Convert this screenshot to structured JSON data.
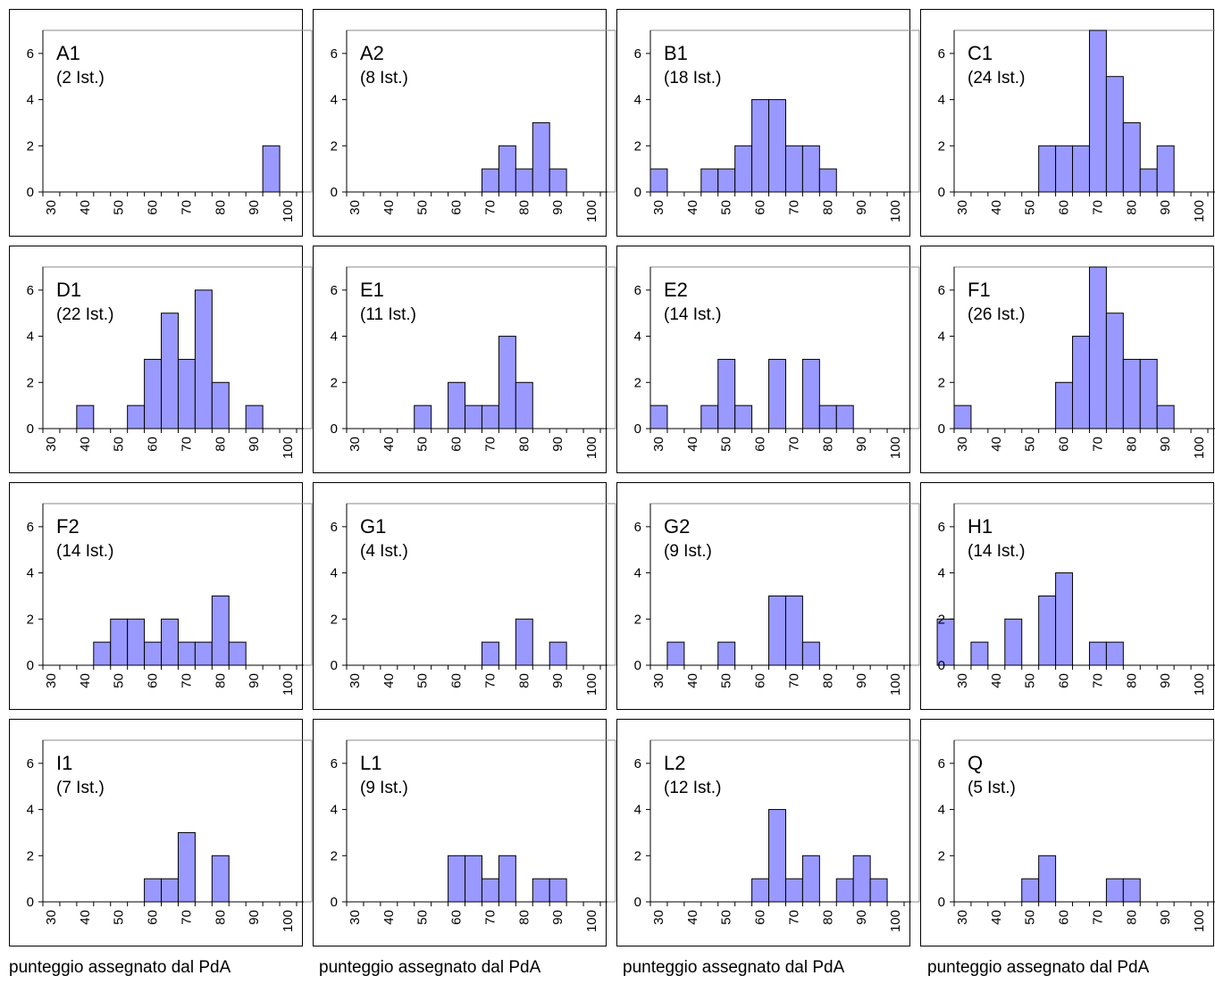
{
  "footer_labels": [
    "punteggio assegnato dal PdA",
    "punteggio assegnato dal PdA",
    "punteggio assegnato dal PdA",
    "punteggio assegnato dal PdA"
  ],
  "chart_data": [
    {
      "type": "bar",
      "title": "A1",
      "subtitle": "(2 Ist.)",
      "bins": [
        30,
        35,
        40,
        45,
        50,
        55,
        60,
        65,
        70,
        75,
        80,
        85,
        90,
        95
      ],
      "values": [
        0,
        0,
        0,
        0,
        0,
        0,
        0,
        0,
        0,
        0,
        0,
        0,
        0,
        2
      ],
      "x_ticks": [
        "30",
        "40",
        "50",
        "60",
        "70",
        "80",
        "90",
        "100"
      ],
      "y_ticks": [
        "0",
        "2",
        "4",
        "6"
      ],
      "ylim": [
        0,
        7
      ],
      "bar_color": "#9999ff",
      "grid": false
    },
    {
      "type": "bar",
      "title": "A2",
      "subtitle": "(8 Ist.)",
      "bins": [
        30,
        35,
        40,
        45,
        50,
        55,
        60,
        65,
        70,
        75,
        80,
        85,
        90,
        95
      ],
      "values": [
        0,
        0,
        0,
        0,
        0,
        0,
        0,
        0,
        1,
        2,
        1,
        3,
        1,
        0
      ],
      "x_ticks": [
        "30",
        "40",
        "50",
        "60",
        "70",
        "80",
        "90",
        "100"
      ],
      "y_ticks": [
        "0",
        "2",
        "4",
        "6"
      ],
      "ylim": [
        0,
        7
      ],
      "bar_color": "#9999ff",
      "grid": false
    },
    {
      "type": "bar",
      "title": "B1",
      "subtitle": "(18 Ist.)",
      "bins": [
        30,
        35,
        40,
        45,
        50,
        55,
        60,
        65,
        70,
        75,
        80,
        85,
        90,
        95
      ],
      "values": [
        1,
        0,
        0,
        1,
        1,
        2,
        4,
        4,
        2,
        2,
        1,
        0,
        0,
        0
      ],
      "x_ticks": [
        "30",
        "40",
        "50",
        "60",
        "70",
        "80",
        "90",
        "100"
      ],
      "y_ticks": [
        "0",
        "2",
        "4",
        "6"
      ],
      "ylim": [
        0,
        7
      ],
      "bar_color": "#9999ff",
      "grid": false
    },
    {
      "type": "bar",
      "title": "C1",
      "subtitle": "(24 Ist.)",
      "bins": [
        30,
        35,
        40,
        45,
        50,
        55,
        60,
        65,
        70,
        75,
        80,
        85,
        90,
        95
      ],
      "values": [
        0,
        0,
        0,
        0,
        0,
        2,
        2,
        2,
        7,
        5,
        3,
        1,
        2,
        0
      ],
      "x_ticks": [
        "30",
        "40",
        "50",
        "60",
        "70",
        "80",
        "90",
        "100"
      ],
      "y_ticks": [
        "0",
        "2",
        "4",
        "6"
      ],
      "ylim": [
        0,
        7
      ],
      "bar_color": "#9999ff",
      "grid": false
    },
    {
      "type": "bar",
      "title": "D1",
      "subtitle": "(22 Ist.)",
      "bins": [
        30,
        35,
        40,
        45,
        50,
        55,
        60,
        65,
        70,
        75,
        80,
        85,
        90,
        95
      ],
      "values": [
        0,
        0,
        1,
        0,
        0,
        1,
        3,
        5,
        3,
        6,
        2,
        0,
        1,
        0
      ],
      "x_ticks": [
        "30",
        "40",
        "50",
        "60",
        "70",
        "80",
        "90",
        "100"
      ],
      "y_ticks": [
        "0",
        "2",
        "4",
        "6"
      ],
      "ylim": [
        0,
        7
      ],
      "bar_color": "#9999ff",
      "grid": false
    },
    {
      "type": "bar",
      "title": "E1",
      "subtitle": "(11 Ist.)",
      "bins": [
        30,
        35,
        40,
        45,
        50,
        55,
        60,
        65,
        70,
        75,
        80,
        85,
        90,
        95
      ],
      "values": [
        0,
        0,
        0,
        0,
        1,
        0,
        2,
        1,
        1,
        4,
        2,
        0,
        0,
        0
      ],
      "x_ticks": [
        "30",
        "40",
        "50",
        "60",
        "70",
        "80",
        "90",
        "100"
      ],
      "y_ticks": [
        "0",
        "2",
        "4",
        "6"
      ],
      "ylim": [
        0,
        7
      ],
      "bar_color": "#9999ff",
      "grid": false
    },
    {
      "type": "bar",
      "title": "E2",
      "subtitle": "(14 Ist.)",
      "bins": [
        30,
        35,
        40,
        45,
        50,
        55,
        60,
        65,
        70,
        75,
        80,
        85,
        90,
        95
      ],
      "values": [
        1,
        0,
        0,
        1,
        3,
        1,
        0,
        3,
        0,
        3,
        1,
        1,
        0,
        0
      ],
      "x_ticks": [
        "30",
        "40",
        "50",
        "60",
        "70",
        "80",
        "90",
        "100"
      ],
      "y_ticks": [
        "0",
        "2",
        "4",
        "6"
      ],
      "ylim": [
        0,
        7
      ],
      "bar_color": "#9999ff",
      "grid": false
    },
    {
      "type": "bar",
      "title": "F1",
      "subtitle": "(26 Ist.)",
      "bins": [
        30,
        35,
        40,
        45,
        50,
        55,
        60,
        65,
        70,
        75,
        80,
        85,
        90,
        95
      ],
      "values": [
        1,
        0,
        0,
        0,
        0,
        0,
        2,
        4,
        7,
        5,
        3,
        3,
        1,
        0
      ],
      "x_ticks": [
        "30",
        "40",
        "50",
        "60",
        "70",
        "80",
        "90",
        "100"
      ],
      "y_ticks": [
        "0",
        "2",
        "4",
        "6"
      ],
      "ylim": [
        0,
        7
      ],
      "bar_color": "#9999ff",
      "grid": false
    },
    {
      "type": "bar",
      "title": "F2",
      "subtitle": "(14 Ist.)",
      "bins": [
        30,
        35,
        40,
        45,
        50,
        55,
        60,
        65,
        70,
        75,
        80,
        85,
        90,
        95
      ],
      "values": [
        0,
        0,
        0,
        1,
        2,
        2,
        1,
        2,
        1,
        1,
        3,
        1,
        0,
        0
      ],
      "x_ticks": [
        "30",
        "40",
        "50",
        "60",
        "70",
        "80",
        "90",
        "100"
      ],
      "y_ticks": [
        "0",
        "2",
        "4",
        "6"
      ],
      "ylim": [
        0,
        7
      ],
      "bar_color": "#9999ff",
      "grid": false
    },
    {
      "type": "bar",
      "title": "G1",
      "subtitle": "(4 Ist.)",
      "bins": [
        30,
        35,
        40,
        45,
        50,
        55,
        60,
        65,
        70,
        75,
        80,
        85,
        90,
        95
      ],
      "values": [
        0,
        0,
        0,
        0,
        0,
        0,
        0,
        0,
        1,
        0,
        2,
        0,
        1,
        0
      ],
      "x_ticks": [
        "30",
        "40",
        "50",
        "60",
        "70",
        "80",
        "90",
        "100"
      ],
      "y_ticks": [
        "0",
        "2",
        "4",
        "6"
      ],
      "ylim": [
        0,
        7
      ],
      "bar_color": "#9999ff",
      "grid": false
    },
    {
      "type": "bar",
      "title": "G2",
      "subtitle": "(9 Ist.)",
      "bins": [
        30,
        35,
        40,
        45,
        50,
        55,
        60,
        65,
        70,
        75,
        80,
        85,
        90,
        95
      ],
      "values": [
        0,
        1,
        0,
        0,
        1,
        0,
        0,
        3,
        3,
        1,
        0,
        0,
        0,
        0
      ],
      "x_ticks": [
        "30",
        "40",
        "50",
        "60",
        "70",
        "80",
        "90",
        "100"
      ],
      "y_ticks": [
        "0",
        "2",
        "4",
        "6"
      ],
      "ylim": [
        0,
        7
      ],
      "bar_color": "#9999ff",
      "grid": false
    },
    {
      "type": "bar",
      "title": "H1",
      "subtitle": "(14 Ist.)",
      "bins": [
        25,
        30,
        35,
        40,
        45,
        50,
        55,
        60,
        65,
        70,
        75,
        80,
        85,
        90,
        95
      ],
      "values": [
        2,
        0,
        1,
        0,
        2,
        0,
        3,
        4,
        0,
        1,
        1,
        0,
        0,
        0,
        0
      ],
      "x_ticks": [
        "30",
        "40",
        "50",
        "60",
        "70",
        "80",
        "90",
        "100"
      ],
      "y_ticks": [
        "0",
        "2",
        "4",
        "6"
      ],
      "ylim": [
        0,
        7
      ],
      "bar_color": "#9999ff",
      "grid": false
    },
    {
      "type": "bar",
      "title": "I1",
      "subtitle": "(7 Ist.)",
      "bins": [
        30,
        35,
        40,
        45,
        50,
        55,
        60,
        65,
        70,
        75,
        80,
        85,
        90,
        95
      ],
      "values": [
        0,
        0,
        0,
        0,
        0,
        0,
        1,
        1,
        3,
        0,
        2,
        0,
        0,
        0
      ],
      "x_ticks": [
        "30",
        "40",
        "50",
        "60",
        "70",
        "80",
        "90",
        "100"
      ],
      "y_ticks": [
        "0",
        "2",
        "4",
        "6"
      ],
      "ylim": [
        0,
        7
      ],
      "bar_color": "#9999ff",
      "grid": false
    },
    {
      "type": "bar",
      "title": "L1",
      "subtitle": "(9 Ist.)",
      "bins": [
        30,
        35,
        40,
        45,
        50,
        55,
        60,
        65,
        70,
        75,
        80,
        85,
        90,
        95
      ],
      "values": [
        0,
        0,
        0,
        0,
        0,
        0,
        2,
        2,
        1,
        2,
        0,
        1,
        1,
        0
      ],
      "x_ticks": [
        "30",
        "40",
        "50",
        "60",
        "70",
        "80",
        "90",
        "100"
      ],
      "y_ticks": [
        "0",
        "2",
        "4",
        "6"
      ],
      "ylim": [
        0,
        7
      ],
      "bar_color": "#9999ff",
      "grid": false
    },
    {
      "type": "bar",
      "title": "L2",
      "subtitle": "(12 Ist.)",
      "bins": [
        30,
        35,
        40,
        45,
        50,
        55,
        60,
        65,
        70,
        75,
        80,
        85,
        90,
        95
      ],
      "values": [
        0,
        0,
        0,
        0,
        0,
        0,
        1,
        4,
        1,
        2,
        0,
        1,
        2,
        1
      ],
      "x_ticks": [
        "30",
        "40",
        "50",
        "60",
        "70",
        "80",
        "90",
        "100"
      ],
      "y_ticks": [
        "0",
        "2",
        "4",
        "6"
      ],
      "ylim": [
        0,
        7
      ],
      "bar_color": "#9999ff",
      "grid": false
    },
    {
      "type": "bar",
      "title": "Q",
      "subtitle": "(5 Ist.)",
      "bins": [
        30,
        35,
        40,
        45,
        50,
        55,
        60,
        65,
        70,
        75,
        80,
        85,
        90,
        95
      ],
      "values": [
        0,
        0,
        0,
        0,
        1,
        2,
        0,
        0,
        0,
        1,
        1,
        0,
        0,
        0
      ],
      "x_ticks": [
        "30",
        "40",
        "50",
        "60",
        "70",
        "80",
        "90",
        "100"
      ],
      "y_ticks": [
        "0",
        "2",
        "4",
        "6"
      ],
      "ylim": [
        0,
        7
      ],
      "bar_color": "#9999ff",
      "grid": false
    }
  ]
}
